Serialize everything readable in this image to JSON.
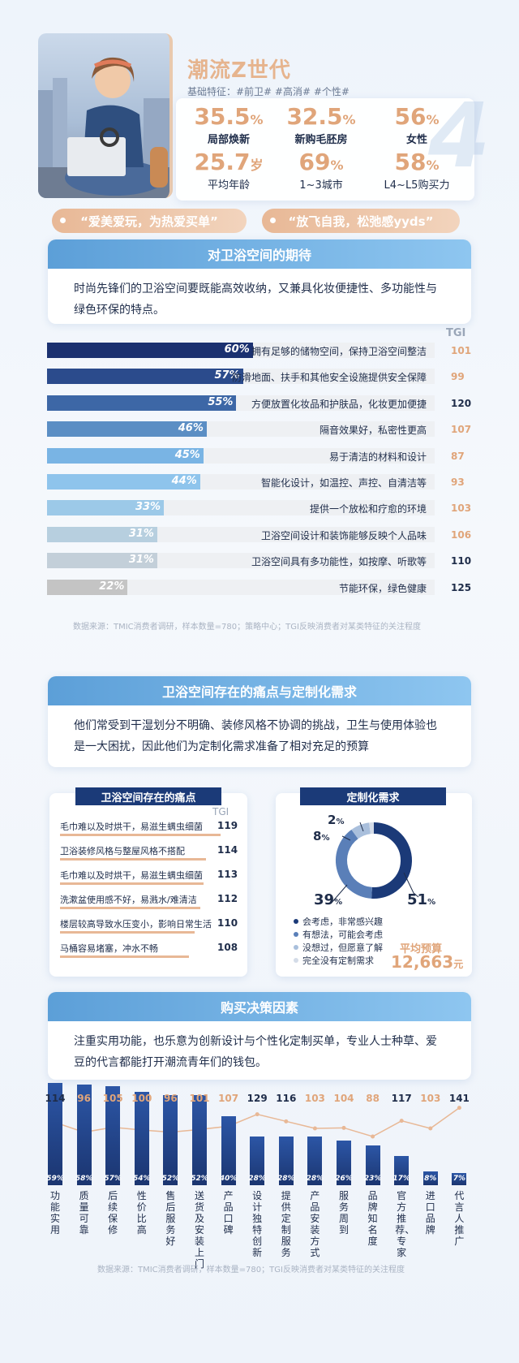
{
  "hero": {
    "title": "潮流Z世代",
    "subtitle": "基础特征：#前卫#  #高消#  #个性#",
    "stats": [
      {
        "value": "35.5",
        "unit": "%",
        "label": "局部焕新",
        "bold": true
      },
      {
        "value": "32.5",
        "unit": "%",
        "label": "新购毛胚房",
        "bold": true
      },
      {
        "value": "56",
        "unit": "%",
        "label": "女性",
        "bold": true
      },
      {
        "value": "25.7",
        "unit": "岁",
        "label": "平均年龄",
        "bold": false
      },
      {
        "value": "69",
        "unit": "%",
        "label": "1~3城市",
        "bold": false
      },
      {
        "value": "58",
        "unit": "%",
        "label": "L4~L5购买力",
        "bold": false
      }
    ],
    "tag_left": "“爱美爱玩，为热爱买单”",
    "tag_right": "“放飞自我，松弛感yyds”",
    "colors": {
      "accent": "#e0a57a",
      "navy": "#1b3a78"
    }
  },
  "section1": {
    "title": "对卫浴空间的期待",
    "body": "时尚先锋们的卫浴空间要既能高效收纳，又兼具化妆便捷性、多功能性与绿色环保的特点。"
  },
  "chart_data": [
    {
      "type": "bar",
      "orientation": "horizontal",
      "tgi_label": "TGI",
      "categories": [
        "拥有足够的储物空间，保持卫浴空间整洁",
        "防滑地面、扶手和其他安全设施提供安全保障",
        "方便放置化妆品和护肤品，化妆更加便捷",
        "隔音效果好，私密性更高",
        "易于清洁的材料和设计",
        "智能化设计，如温控、声控、自清洁等",
        "提供一个放松和疗愈的环境",
        "卫浴空间设计和装饰能够反映个人品味",
        "卫浴空间具有多功能性，如按摩、听歌等",
        "节能环保，绿色健康"
      ],
      "values": [
        60,
        57,
        55,
        46,
        45,
        44,
        33,
        31,
        31,
        22
      ],
      "value_labels": [
        "60%",
        "57%",
        "55%",
        "46%",
        "45%",
        "44%",
        "33%",
        "31%",
        "31%",
        "22%"
      ],
      "tgi": [
        101,
        99,
        120,
        107,
        87,
        93,
        103,
        106,
        110,
        125
      ],
      "tgi_highlight": [
        false,
        false,
        true,
        false,
        false,
        false,
        false,
        false,
        true,
        true
      ],
      "xlim": [
        0,
        100
      ]
    },
    {
      "type": "table",
      "title": "卫浴空间存在的痛点",
      "tgi_label": "TGI",
      "categories": [
        "毛巾难以及时烘干，易滋生螨虫细菌",
        "卫浴装修风格与整屋风格不搭配",
        "毛巾难以及时烘干，易滋生螨虫细菌",
        "洗漱盆使用感不好，易溅水/难清洁",
        "楼层较高导致水压变小，影响日常生活",
        "马桶容易堵塞，冲水不畅"
      ],
      "tgi": [
        119,
        114,
        113,
        112,
        110,
        108
      ]
    },
    {
      "type": "pie",
      "title": "定制化需求",
      "categories": [
        "会考虑，非常感兴趣",
        "有想法，可能会考虑",
        "没想过，但愿意了解",
        "完全没有定制需求"
      ],
      "values": [
        51,
        39,
        8,
        2
      ],
      "value_labels": [
        "51",
        "39",
        "8",
        "2"
      ],
      "unit": "%",
      "colors": [
        "#1b3a78",
        "#5a7fb8",
        "#a9bfdc",
        "#d4dce8"
      ],
      "budget_label": "平均预算",
      "budget_value": "12,663",
      "budget_unit": "元"
    },
    {
      "type": "bar",
      "orientation": "vertical",
      "categories": [
        "功能实用",
        "质量可靠",
        "后续保修",
        "性价比高",
        "售后服务好",
        "送货及安装上门",
        "产品口碑",
        "设计独特创新",
        "提供定制服务",
        "产品安装方式",
        "服务周到",
        "品牌知名度",
        "官方推荐、专家",
        "进口品牌",
        "代言人推广"
      ],
      "values": [
        59,
        58,
        57,
        54,
        52,
        52,
        40,
        28,
        28,
        28,
        26,
        23,
        17,
        8,
        7
      ],
      "value_labels": [
        "59%",
        "58%",
        "57%",
        "54%",
        "52%",
        "52%",
        "40%",
        "28%",
        "28%",
        "28%",
        "26%",
        "23%",
        "17%",
        "8%",
        "7%"
      ],
      "tgi": [
        114,
        96,
        105,
        100,
        96,
        101,
        107,
        129,
        116,
        103,
        104,
        88,
        117,
        103,
        141
      ],
      "tgi_highlight": [
        true,
        false,
        false,
        false,
        false,
        false,
        false,
        true,
        true,
        false,
        false,
        false,
        true,
        false,
        true
      ],
      "ylim": [
        0,
        100
      ]
    }
  ],
  "section2": {
    "title": "卫浴空间存在的痛点与定制化需求",
    "body": "他们常受到干湿划分不明确、装修风格不协调的挑战，卫生与使用体验也是一大困扰，因此他们为定制化需求准备了相对充足的预算"
  },
  "section3": {
    "title": "购买决策因素",
    "body": "注重实用功能，也乐意为创新设计与个性化定制买单，专业人士种草、爱豆的代言都能打开潮流青年们的钱包。"
  },
  "sources": {
    "s1": "数据来源：TMIC消费者调研，样本数量=780；策略中心；TGI反映消费者对某类特征的关注程度",
    "s2": "数据来源：TMIC消费者调研，样本数量=780；TGI反映消费者对某类特征的关注程度"
  }
}
